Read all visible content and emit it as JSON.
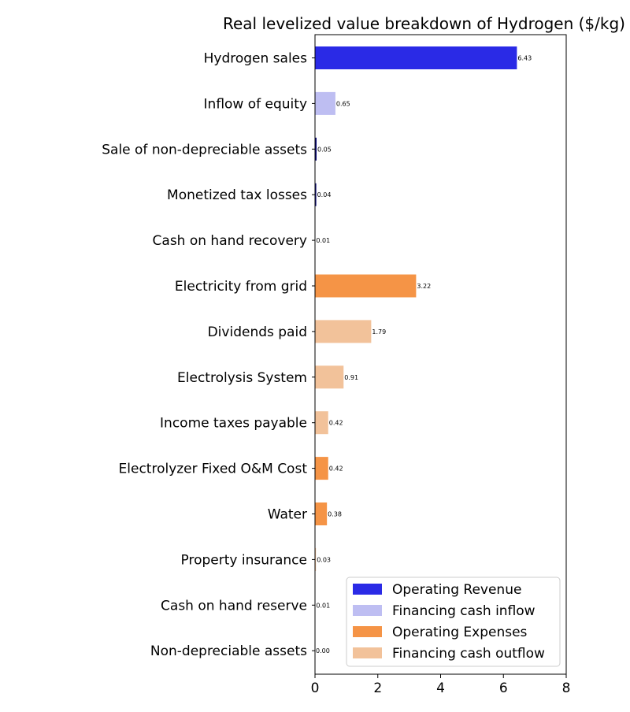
{
  "chart_data": {
    "type": "bar",
    "orientation": "horizontal",
    "title": "Real levelized value breakdown of Hydrogen ($/kg)",
    "xlabel": "",
    "ylabel": "",
    "xlim": [
      0,
      8
    ],
    "xticks": [
      0,
      2,
      4,
      6,
      8
    ],
    "grid": false,
    "legend_position": "bottom-right",
    "categories": [
      "Hydrogen sales",
      "Inflow of equity",
      "Sale of non-depreciable assets",
      "Monetized tax losses",
      "Cash on hand recovery",
      "Electricity from grid",
      "Dividends paid",
      "Electrolysis System",
      "Income taxes payable",
      "Electrolyzer Fixed O&M Cost",
      "Water",
      "Property insurance",
      "Cash on hand reserve",
      "Non-depreciable assets"
    ],
    "values": [
      6.43,
      0.65,
      0.05,
      0.04,
      0.01,
      3.22,
      1.79,
      0.91,
      0.42,
      0.42,
      0.38,
      0.03,
      0.01,
      0.0
    ],
    "value_labels": [
      "6.43",
      "0.65",
      "0.05",
      "0.04",
      "0.01",
      "3.22",
      "1.79",
      "0.91",
      "0.42",
      "0.42",
      "0.38",
      "0.03",
      "0.01",
      "0.00"
    ],
    "bar_groups": [
      0,
      1,
      2,
      2,
      2,
      3,
      4,
      4,
      4,
      3,
      3,
      4,
      4,
      4
    ],
    "group_colors": [
      "#2a2ae6",
      "#bebef2",
      "#0a0a78",
      "#f59446",
      "#f2c29a"
    ],
    "legend": [
      {
        "label": "Operating Revenue",
        "color": "#2a2ae6"
      },
      {
        "label": "Financing cash inflow",
        "color": "#bebef2"
      },
      {
        "label": "Operating Expenses",
        "color": "#f59446"
      },
      {
        "label": "Financing cash outflow",
        "color": "#f2c29a"
      }
    ]
  }
}
